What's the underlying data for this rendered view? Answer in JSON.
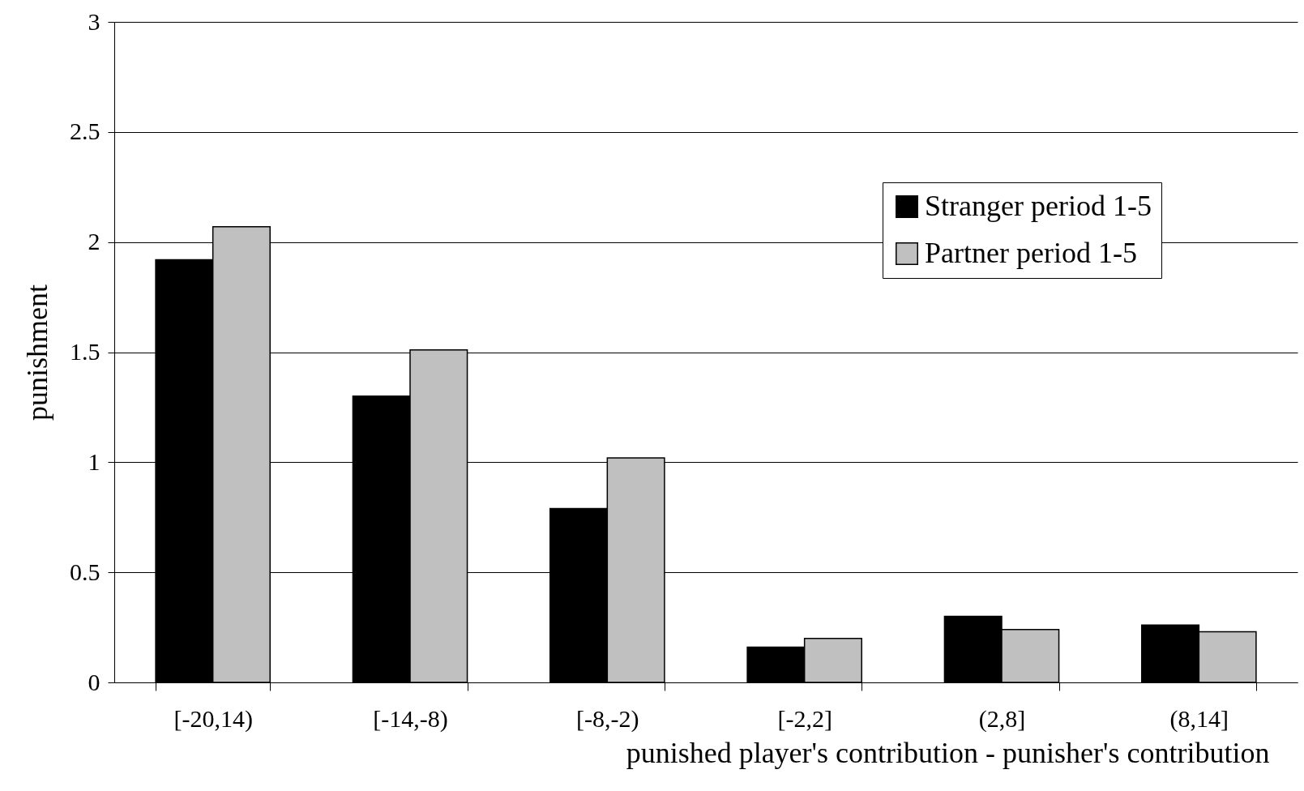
{
  "chart_data": {
    "type": "bar",
    "xlabel": "punished player's contribution - punisher's contribution",
    "ylabel": "punishment",
    "categories": [
      "[-20,14)",
      "[-14,-8)",
      "[-8,-2)",
      "[-2,2]",
      "(2,8]",
      "(8,14]"
    ],
    "series": [
      {
        "name": "Stranger period 1-5",
        "color": "#000000",
        "values": [
          1.92,
          1.3,
          0.79,
          0.16,
          0.3,
          0.26
        ]
      },
      {
        "name": "Partner period 1-5",
        "color": "#c0c0c0",
        "values": [
          2.07,
          1.51,
          1.02,
          0.2,
          0.24,
          0.23
        ]
      }
    ],
    "ylim": [
      0,
      3
    ],
    "yticks": [
      0,
      0.5,
      1,
      1.5,
      2,
      2.5,
      3
    ],
    "grid": "y",
    "legend": "top right"
  }
}
